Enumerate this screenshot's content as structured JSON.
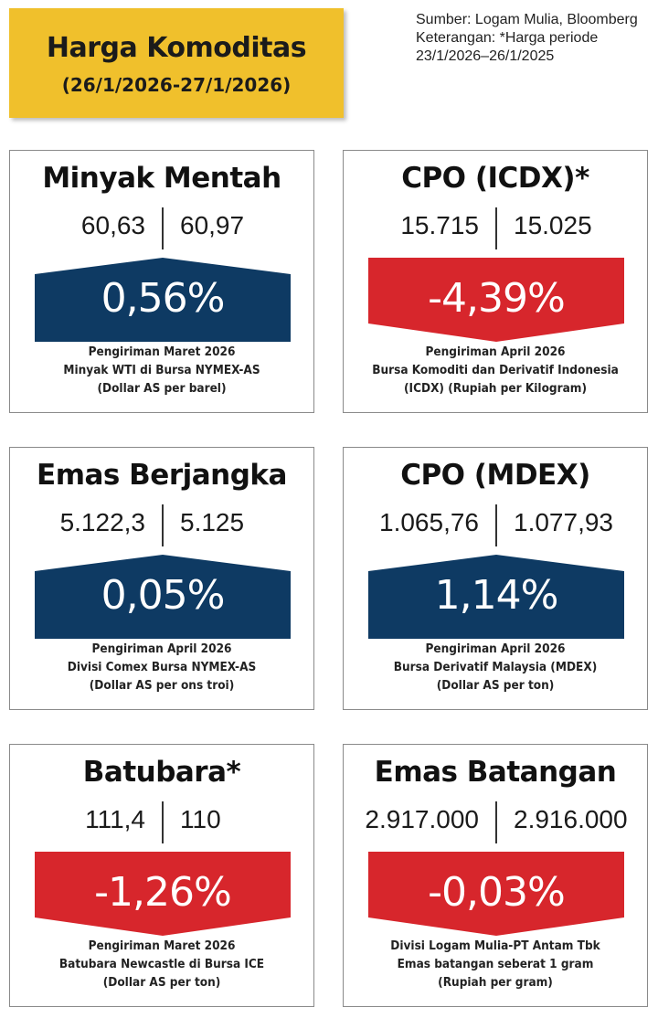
{
  "header": {
    "title": "Harga Komoditas",
    "date_range": "(26/1/2026-27/1/2026)"
  },
  "source_note": {
    "line1": "Sumber: Logam Mulia, Bloomberg",
    "line2": "Keterangan: *Harga periode",
    "line3": "23/1/2026–26/1/2025"
  },
  "colors": {
    "up": "#0e3a63",
    "down": "#d7262c",
    "banner": "#f0c02c"
  },
  "commodities": [
    {
      "name": "Minyak Mentah",
      "price_prev": "60,63",
      "price_curr": "60,97",
      "change": "0,56%",
      "direction": "up",
      "desc1": "Pengiriman Maret 2026",
      "desc2": "Minyak WTI di Bursa NYMEX-AS",
      "desc3": "(Dollar AS per barel)"
    },
    {
      "name": "CPO (ICDX)*",
      "price_prev": "15.715",
      "price_curr": "15.025",
      "change": "-4,39%",
      "direction": "down",
      "desc1": "Pengiriman April 2026",
      "desc2": "Bursa Komoditi dan Derivatif Indonesia",
      "desc3": "(ICDX) (Rupiah per Kilogram)"
    },
    {
      "name": "Emas Berjangka",
      "price_prev": "5.122,3",
      "price_curr": "5.125",
      "change": "0,05%",
      "direction": "up",
      "desc1": "Pengiriman April 2026",
      "desc2": "Divisi Comex Bursa NYMEX-AS",
      "desc3": "(Dollar AS per ons troi)"
    },
    {
      "name": "CPO (MDEX)",
      "price_prev": "1.065,76",
      "price_curr": "1.077,93",
      "change": "1,14%",
      "direction": "up",
      "desc1": "Pengiriman April 2026",
      "desc2": "Bursa Derivatif Malaysia (MDEX)",
      "desc3": "(Dollar AS per ton)"
    },
    {
      "name": "Batubara*",
      "price_prev": "111,4",
      "price_curr": "110",
      "change": "-1,26%",
      "direction": "down",
      "desc1": "Pengiriman Maret 2026",
      "desc2": "Batubara Newcastle di Bursa ICE",
      "desc3": "(Dollar AS per ton)"
    },
    {
      "name": "Emas Batangan",
      "price_prev": "2.917.000",
      "price_curr": "2.916.000",
      "change": "-0,03%",
      "direction": "down",
      "desc1": "Divisi Logam Mulia-PT Antam Tbk",
      "desc2": "Emas batangan seberat 1 gram",
      "desc3": "(Rupiah per gram)"
    }
  ]
}
